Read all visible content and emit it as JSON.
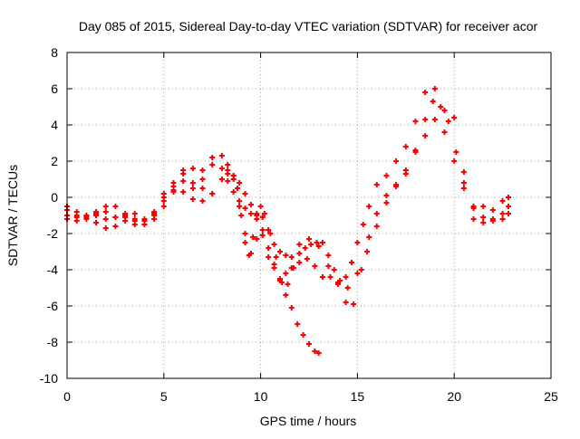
{
  "chart_data": {
    "type": "scatter",
    "title": "Day 085 of 2015, Sidereal Day-to-day VTEC variation (SDTVAR) for receiver acor",
    "xlabel": "GPS time / hours",
    "ylabel": "SDTVAR / TECUs",
    "xlim": [
      0,
      25
    ],
    "ylim": [
      -10,
      8
    ],
    "xticks": [
      0,
      5,
      10,
      15,
      20,
      25
    ],
    "yticks": [
      -10,
      -8,
      -6,
      -4,
      -2,
      0,
      2,
      4,
      6,
      8
    ],
    "grid": true,
    "marker": "+",
    "series_color": "#ff0000",
    "series": [
      {
        "x": [
          0.0,
          0.5,
          1.0,
          1.5,
          2.0,
          2.5,
          3.0,
          3.5,
          4.0,
          4.5,
          5.0,
          5.5,
          6.0,
          6.5,
          7.0,
          7.5,
          8.0,
          8.3,
          8.6,
          8.9,
          9.2,
          9.5,
          9.8,
          10.1,
          10.4,
          10.7,
          11.0,
          11.3,
          11.6,
          11.9,
          12.2,
          12.5,
          12.8,
          13.0
        ],
        "y": [
          -0.7,
          -1.0,
          -1.1,
          -1.0,
          -1.2,
          -1.1,
          -1.1,
          -1.2,
          -1.2,
          -0.9,
          0.0,
          0.6,
          0.9,
          0.5,
          1.0,
          1.8,
          1.6,
          1.5,
          1.2,
          0.8,
          0.2,
          -0.4,
          -1.0,
          -1.8,
          -2.8,
          -3.7,
          -4.6,
          -5.4,
          -6.1,
          -7.0,
          -7.6,
          -8.1,
          -8.5,
          -8.6
        ]
      },
      {
        "x": [
          0.0,
          0.5,
          1.0,
          1.5,
          2.0,
          2.5,
          3.0,
          3.5,
          4.0,
          4.5,
          5.0,
          5.5,
          6.0,
          6.5,
          7.0,
          7.5,
          8.0,
          8.3,
          8.6,
          8.9,
          9.2,
          9.5,
          9.8,
          10.1,
          10.4,
          10.7,
          11.0,
          11.3,
          11.6,
          12.0,
          12.5,
          13.0,
          13.5,
          14.0,
          14.5,
          15.0,
          15.5,
          16.0,
          16.5,
          17.0,
          17.5,
          18.0,
          18.5,
          19.0,
          19.5,
          20.0,
          20.5,
          21.0,
          21.5,
          22.0,
          22.5,
          22.8
        ],
        "y": [
          -1.2,
          -1.3,
          -1.2,
          -1.4,
          -1.7,
          -1.6,
          -1.3,
          -1.5,
          -1.5,
          -1.2,
          -0.5,
          0.3,
          1.3,
          0.8,
          1.5,
          2.2,
          2.3,
          1.8,
          1.0,
          -0.5,
          -2.0,
          -3.1,
          -2.3,
          -1.1,
          -1.8,
          -2.6,
          -3.0,
          -3.2,
          -3.3,
          -2.6,
          -2.3,
          -2.7,
          -3.8,
          -4.7,
          -5.0,
          -4.2,
          -3.0,
          -1.6,
          -0.3,
          0.7,
          1.5,
          2.5,
          3.4,
          4.3,
          3.6,
          2.0,
          0.5,
          -0.5,
          -1.1,
          -1.2,
          -0.9,
          -0.5
        ]
      },
      {
        "x": [
          0.0,
          0.5,
          1.0,
          1.5,
          2.0,
          2.5,
          3.0,
          3.5,
          4.0,
          4.5,
          5.0,
          5.5,
          6.0,
          6.5,
          7.0,
          7.5,
          8.0,
          8.3,
          8.6,
          8.9,
          9.2,
          9.5,
          9.8,
          10.1,
          10.4,
          10.7,
          11.0,
          11.3,
          11.6,
          12.0,
          12.4,
          12.8,
          13.2,
          13.6,
          14.0,
          14.4,
          14.8,
          15.2,
          15.6,
          16.0,
          16.5,
          17.0,
          17.5,
          18.0,
          18.5,
          18.9,
          19.3,
          19.7,
          20.1,
          20.5,
          21.0,
          21.5,
          22.0,
          22.5,
          22.8
        ],
        "y": [
          -1.0,
          -1.1,
          -1.0,
          -0.9,
          -0.8,
          -1.1,
          -0.9,
          -1.3,
          -1.5,
          -1.0,
          -0.2,
          0.4,
          1.5,
          1.6,
          0.5,
          0.2,
          1.0,
          0.9,
          0.3,
          -0.2,
          -0.6,
          -0.9,
          -1.2,
          -2.1,
          -3.3,
          -3.9,
          -4.5,
          -4.2,
          -3.9,
          -3.6,
          -3.4,
          -3.8,
          -4.4,
          -4.4,
          -4.8,
          -5.8,
          -5.9,
          -4.0,
          -2.2,
          -0.9,
          0.1,
          0.6,
          1.3,
          2.6,
          4.3,
          5.3,
          5.0,
          4.2,
          2.5,
          0.8,
          -0.6,
          -1.4,
          -1.3,
          -1.2,
          -0.9
        ]
      },
      {
        "x": [
          0.0,
          0.5,
          1.0,
          1.5,
          2.0,
          2.5,
          3.0,
          3.5,
          4.0,
          4.5,
          5.0,
          5.5,
          6.0,
          6.5,
          7.0,
          7.5,
          8.0,
          8.3,
          8.6,
          8.8,
          9.0,
          9.2,
          9.4,
          9.6,
          9.8,
          10.0,
          10.2,
          10.5,
          10.8,
          11.1,
          11.4,
          11.7,
          12.0,
          12.3,
          12.6,
          12.9,
          13.2,
          13.5,
          13.8,
          14.1,
          14.4,
          14.7,
          15.0,
          15.3,
          15.6,
          16.0,
          16.5,
          17.0,
          17.5,
          18.0,
          18.5,
          19.0,
          19.5,
          20.0,
          20.5,
          21.0,
          21.5,
          22.0,
          22.5,
          22.8
        ],
        "y": [
          -0.5,
          -0.8,
          -1.0,
          -0.8,
          -0.5,
          -0.5,
          -1.0,
          -0.9,
          -1.3,
          -0.8,
          0.2,
          0.8,
          0.3,
          -0.1,
          -0.2,
          0.2,
          1.0,
          1.3,
          1.2,
          0.5,
          -1.0,
          -2.5,
          -3.2,
          -2.2,
          -0.9,
          -0.5,
          -0.9,
          -2.0,
          -3.3,
          -4.7,
          -4.8,
          -3.9,
          -3.1,
          -2.8,
          -2.6,
          -2.5,
          -2.5,
          -3.2,
          -4.0,
          -4.6,
          -4.4,
          -3.6,
          -2.5,
          -1.5,
          -0.5,
          0.7,
          1.2,
          2.0,
          2.8,
          4.2,
          5.8,
          6.0,
          4.8,
          4.4,
          1.4,
          -1.2,
          -0.5,
          -0.7,
          -0.2,
          0.0
        ]
      }
    ]
  }
}
